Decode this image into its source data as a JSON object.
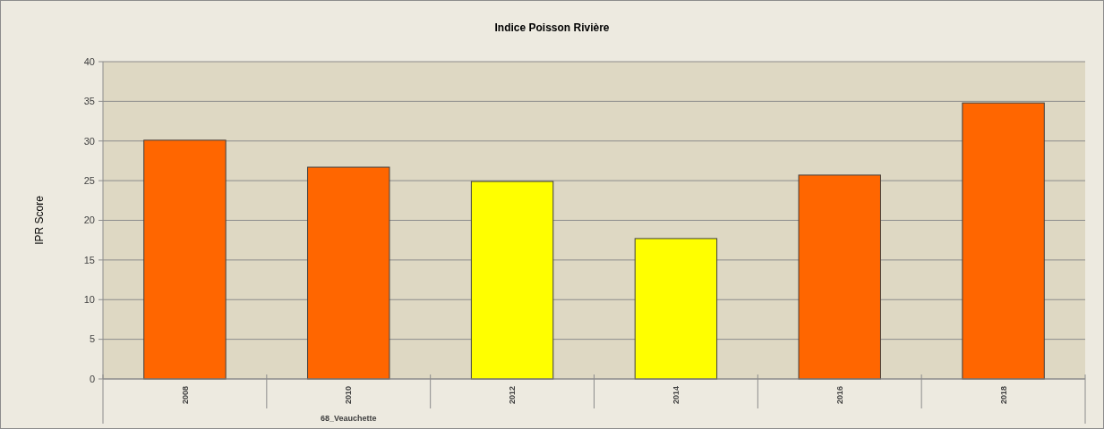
{
  "chart_data": {
    "type": "bar",
    "title": "Indice Poisson Rivière",
    "xlabel": "68_Veauchette",
    "ylabel": "IPR Score",
    "categories": [
      "2008",
      "2010",
      "2012",
      "2014",
      "2016",
      "2018"
    ],
    "values": [
      30.1,
      26.7,
      24.9,
      17.7,
      25.7,
      34.8
    ],
    "colors": [
      "#ff6600",
      "#ff6600",
      "#ffff00",
      "#ffff00",
      "#ff6600",
      "#ff6600"
    ],
    "ylim": [
      0,
      40
    ],
    "yticks": [
      0,
      5,
      10,
      15,
      20,
      25,
      30,
      35,
      40
    ],
    "grid": "y"
  }
}
